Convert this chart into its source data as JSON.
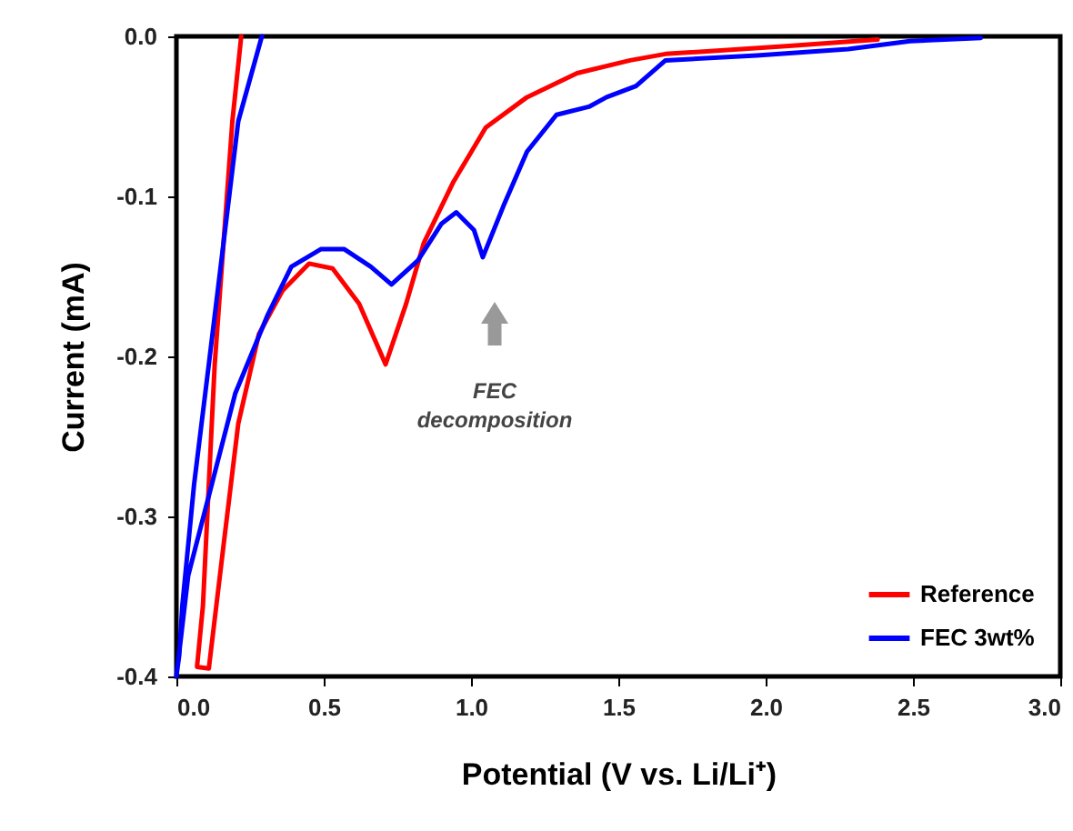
{
  "chart_data": {
    "type": "line",
    "xlabel": "Potential (V vs. Li/Li⁺)",
    "ylabel": "Current (mA)",
    "xlim": [
      0,
      3
    ],
    "ylim": [
      -0.4,
      0
    ],
    "xticks": [
      {
        "value": 0,
        "label": "0.0"
      },
      {
        "value": 0.5,
        "label": "0.5"
      },
      {
        "value": 1,
        "label": "1.0"
      },
      {
        "value": 1.5,
        "label": "1.5"
      },
      {
        "value": 2,
        "label": "2.0"
      },
      {
        "value": 2.5,
        "label": "2.5"
      },
      {
        "value": 3,
        "label": "3.0"
      }
    ],
    "yticks": [
      {
        "value": -0.4,
        "label": "-0.4"
      },
      {
        "value": -0.3,
        "label": "-0.3"
      },
      {
        "value": -0.2,
        "label": "-0.2"
      },
      {
        "value": -0.1,
        "label": "-0.1"
      },
      {
        "value": 0,
        "label": "0.0"
      }
    ],
    "grid": false,
    "legend": "bottom right",
    "line_style": "solid",
    "marker": "none",
    "annotations": [
      "FEC decomposition"
    ],
    "series": [
      {
        "name": "Reference",
        "color": "#ff0000",
        "x": [
          0.22,
          0.19,
          0.16,
          0.13,
          0.11,
          0.09,
          0.07,
          0.11,
          0.16,
          0.21,
          0.28,
          0.36,
          0.45,
          0.53,
          0.62,
          0.71,
          0.78,
          0.84,
          0.94,
          1.05,
          1.19,
          1.36,
          1.54,
          1.66,
          2.08,
          2.38
        ],
        "values": [
          0,
          -0.053,
          -0.129,
          -0.205,
          -0.28,
          -0.356,
          -0.394,
          -0.395,
          -0.318,
          -0.242,
          -0.186,
          -0.159,
          -0.142,
          -0.145,
          -0.167,
          -0.205,
          -0.167,
          -0.129,
          -0.091,
          -0.057,
          -0.038,
          -0.023,
          -0.015,
          -0.011,
          -0.006,
          -0.002
        ]
      },
      {
        "name": "FEC 3wt%",
        "color": "#0000ff",
        "x": [
          0.29,
          0.21,
          0.16,
          0.11,
          0.06,
          0.02,
          0.01,
          0.0,
          0.04,
          0.12,
          0.2,
          0.31,
          0.39,
          0.49,
          0.57,
          0.66,
          0.73,
          0.82,
          0.9,
          0.95,
          1.01,
          1.04,
          1.11,
          1.19,
          1.29,
          1.4,
          1.46,
          1.56,
          1.66,
          1.97,
          2.28,
          2.49,
          2.73
        ],
        "values": [
          0,
          -0.053,
          -0.129,
          -0.205,
          -0.28,
          -0.356,
          -0.386,
          -0.4,
          -0.337,
          -0.28,
          -0.223,
          -0.174,
          -0.144,
          -0.133,
          -0.133,
          -0.144,
          -0.155,
          -0.14,
          -0.117,
          -0.11,
          -0.121,
          -0.138,
          -0.106,
          -0.072,
          -0.049,
          -0.044,
          -0.038,
          -0.031,
          -0.015,
          -0.012,
          -0.008,
          -0.003,
          -0.001
        ]
      }
    ]
  }
}
